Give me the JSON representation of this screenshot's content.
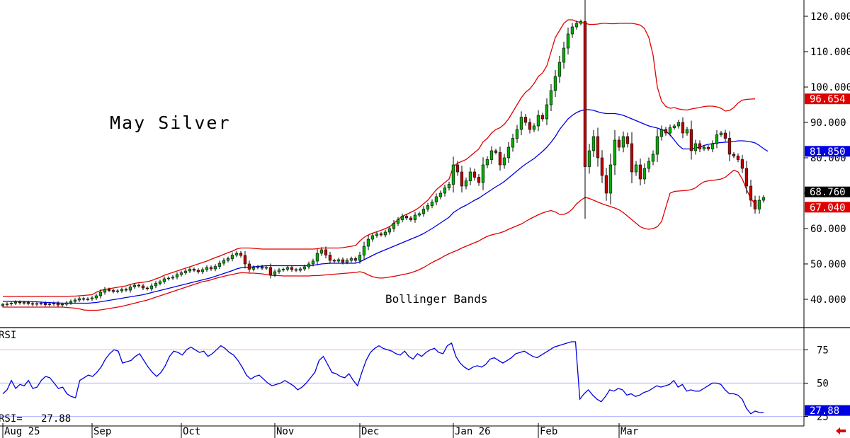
{
  "colors": {
    "candle_up": "#00b000",
    "candle_down": "#c00000",
    "bollinger_upper": "#e00000",
    "bollinger_lower": "#e00000",
    "bollinger_mid": "#0000e0",
    "rsi_line": "#0000e0",
    "rsi_guide_75": "#ffb0b0",
    "rsi_guide_50": "#b0b0ff",
    "rsi_guide_25": "#b0b0ff",
    "tag_upper_bg": "#e00000",
    "tag_mid_bg": "#0000e0",
    "tag_last_bg": "#000000",
    "tag_rsi_bg": "#0000e0",
    "arrow": "#e00000"
  },
  "icons": {
    "scroll_arrow": "red-left-arrow-icon"
  },
  "chart_data": [
    {
      "type": "candlestick",
      "title": "May Silver",
      "annotation": "Bollinger Bands",
      "ylim": [
        33,
        123
      ],
      "y_ticks": [
        "40.000",
        "50.000",
        "60.000",
        "70.000",
        "80.000",
        "90.000",
        "100.000",
        "110.000",
        "120.000"
      ],
      "y_tick_values": [
        40,
        50,
        60,
        70,
        80,
        90,
        100,
        110,
        120
      ],
      "value_tags": {
        "upper_band": "96.654",
        "middle_band": "81.850",
        "last_price": "68.760",
        "lower_band": "67.040"
      },
      "x_ticks": [
        "Aug 25",
        "Sep",
        "Oct",
        "Nov",
        "Dec",
        "Jan 26",
        "Feb",
        "Mar"
      ],
      "x_tick_index": [
        0,
        21,
        42,
        64,
        84,
        106,
        126,
        145
      ],
      "closes": [
        38.5,
        38.7,
        38.9,
        39.2,
        39.0,
        39.1,
        38.8,
        38.6,
        38.8,
        38.9,
        38.5,
        38.7,
        38.9,
        38.4,
        38.6,
        39.0,
        39.4,
        39.8,
        40.2,
        40.0,
        40.1,
        40.4,
        41.0,
        42.0,
        42.8,
        42.5,
        42.2,
        42.4,
        42.8,
        42.6,
        43.5,
        44.0,
        43.8,
        43.2,
        43.0,
        43.8,
        44.5,
        45.0,
        45.8,
        46.0,
        46.3,
        47.0,
        47.5,
        48.0,
        48.5,
        48.2,
        47.8,
        48.4,
        49.0,
        48.6,
        49.3,
        50.2,
        51.0,
        51.5,
        52.5,
        53.0,
        52.4,
        50.0,
        48.5,
        49.0,
        49.2,
        48.8,
        49.0,
        47.0,
        47.8,
        48.3,
        48.5,
        49.0,
        48.4,
        48.2,
        48.6,
        49.2,
        50.0,
        50.8,
        53.0,
        54.0,
        52.5,
        51.0,
        50.8,
        51.2,
        50.5,
        51.0,
        51.5,
        51.0,
        52.5,
        55.0,
        57.0,
        58.0,
        58.5,
        58.2,
        59.0,
        60.0,
        61.5,
        62.5,
        63.5,
        63.0,
        62.5,
        63.8,
        64.2,
        65.5,
        66.5,
        67.5,
        69.0,
        70.0,
        71.5,
        72.5,
        78.0,
        76.0,
        72.0,
        73.5,
        76.0,
        74.5,
        73.0,
        78.0,
        79.5,
        82.0,
        81.5,
        78.0,
        80.0,
        83.0,
        85.5,
        88.0,
        91.5,
        90.0,
        88.0,
        89.0,
        92.0,
        91.0,
        95.0,
        99.0,
        103.0,
        107.0,
        111.0,
        115.0,
        117.0,
        118.0,
        118.5,
        77.5,
        82.0,
        86.0,
        80.0,
        75.0,
        70.0,
        78.0,
        85.0,
        83.0,
        86.0,
        84.0,
        76.0,
        78.0,
        74.0,
        77.0,
        79.0,
        81.0,
        86.0,
        88.0,
        87.0,
        88.5,
        89.0,
        90.0,
        87.0,
        88.0,
        82.0,
        84.0,
        82.5,
        83.0,
        82.5,
        84.0,
        86.5,
        87.0,
        85.5,
        81.0,
        80.5,
        79.5,
        77.0,
        72.0,
        68.0,
        65.5,
        68.0,
        68.76
      ],
      "series": [
        {
          "name": "Upper",
          "values": [
            40.8,
            40.8,
            40.8,
            40.8,
            40.8,
            40.8,
            40.8,
            40.8,
            40.8,
            40.8,
            40.8,
            40.8,
            40.8,
            40.8,
            40.8,
            40.8,
            40.9,
            40.9,
            41.0,
            41.1,
            41.2,
            41.3,
            42.0,
            42.5,
            42.8,
            43.0,
            43.2,
            43.4,
            43.6,
            43.8,
            44.2,
            44.5,
            44.7,
            44.8,
            45.0,
            45.3,
            45.8,
            46.2,
            46.8,
            47.2,
            47.6,
            48.0,
            48.4,
            48.8,
            49.2,
            49.6,
            50.0,
            50.4,
            50.8,
            51.3,
            51.8,
            52.2,
            52.7,
            53.2,
            53.6,
            54.2,
            54.5,
            54.5,
            54.5,
            54.4,
            54.3,
            54.2,
            54.2,
            54.2,
            54.2,
            54.2,
            54.2,
            54.2,
            54.2,
            54.2,
            54.2,
            54.2,
            54.2,
            54.2,
            54.3,
            54.5,
            54.5,
            54.5,
            54.5,
            54.5,
            54.6,
            54.8,
            55.0,
            55.2,
            56.5,
            57.5,
            58.2,
            58.7,
            59.1,
            59.5,
            60.0,
            60.5,
            61.5,
            62.5,
            63.5,
            64.0,
            64.6,
            65.2,
            66.0,
            67.0,
            68.0,
            69.5,
            71.0,
            72.0,
            73.0,
            74.0,
            77.5,
            78.5,
            79.0,
            79.5,
            80.5,
            81.5,
            82.5,
            84.5,
            85.5,
            87.0,
            88.0,
            88.5,
            89.5,
            91.0,
            93.0,
            95.0,
            97.0,
            98.5,
            99.5,
            101.0,
            103.0,
            104.0,
            106.0,
            110.0,
            114.0,
            116.0,
            118.0,
            119.0,
            119.0,
            118.5,
            118.3,
            118.0,
            117.7,
            117.7,
            117.8,
            118.0,
            118.0,
            117.9,
            117.9,
            118.0,
            118.0,
            118.0,
            118.0,
            117.8,
            117.5,
            116.5,
            114.0,
            109.0,
            100.0,
            96.0,
            94.5,
            94.0,
            94.2,
            93.8,
            93.6,
            93.5,
            93.8,
            94.0,
            94.2,
            94.5,
            94.6,
            94.6,
            94.4,
            94.0,
            93.2,
            93.4,
            94.2,
            95.5,
            96.3,
            96.5,
            96.6,
            96.654
          ],
          "color": "#e00000"
        },
        {
          "name": "Middle",
          "values": [
            39.4,
            39.4,
            39.4,
            39.4,
            39.4,
            39.4,
            39.3,
            39.3,
            39.3,
            39.2,
            39.1,
            39.1,
            39.0,
            39.0,
            38.9,
            38.9,
            38.9,
            38.9,
            38.9,
            38.9,
            38.9,
            39.0,
            39.1,
            39.3,
            39.5,
            39.7,
            39.9,
            40.1,
            40.3,
            40.5,
            40.7,
            40.9,
            41.1,
            41.3,
            41.6,
            41.9,
            42.2,
            42.5,
            42.8,
            43.1,
            43.4,
            43.7,
            44.0,
            44.3,
            44.6,
            44.9,
            45.2,
            45.5,
            45.8,
            46.1,
            46.5,
            46.9,
            47.3,
            47.7,
            48.1,
            48.6,
            48.9,
            49.0,
            49.1,
            49.2,
            49.3,
            49.4,
            49.5,
            49.5,
            49.5,
            49.5,
            49.5,
            49.5,
            49.5,
            49.5,
            49.5,
            49.5,
            49.5,
            49.6,
            49.8,
            50.0,
            50.1,
            50.2,
            50.2,
            50.2,
            50.2,
            50.2,
            50.2,
            50.2,
            50.6,
            51.2,
            51.8,
            52.4,
            53.0,
            53.5,
            54.0,
            54.5,
            55.0,
            55.5,
            56.0,
            56.5,
            57.0,
            57.5,
            58.0,
            58.6,
            59.3,
            60.0,
            60.8,
            61.6,
            62.4,
            63.2,
            64.5,
            65.3,
            66.0,
            66.6,
            67.3,
            68.0,
            68.6,
            69.4,
            70.2,
            71.0,
            71.8,
            72.5,
            73.3,
            74.3,
            75.3,
            76.3,
            77.3,
            78.2,
            79.0,
            79.8,
            80.8,
            81.8,
            83.0,
            84.4,
            86.0,
            88.0,
            89.5,
            91.0,
            92.0,
            92.8,
            93.3,
            93.6,
            93.6,
            93.4,
            93.0,
            92.7,
            92.5,
            92.5,
            92.5,
            92.3,
            92.0,
            91.5,
            91.0,
            90.5,
            90.0,
            89.5,
            89.0,
            88.7,
            88.4,
            88.0,
            87.5,
            86.5,
            85.0,
            83.5,
            82.5,
            82.5,
            82.5,
            82.8,
            83.0,
            83.5,
            83.8,
            84.0,
            84.2,
            84.3,
            84.4,
            84.5,
            84.6,
            84.8,
            84.8,
            84.7,
            84.5,
            84.2,
            83.5,
            82.6,
            81.85
          ],
          "color": "#0000e0"
        },
        {
          "name": "Lower",
          "values": [
            37.8,
            37.8,
            37.8,
            37.8,
            37.8,
            37.8,
            37.8,
            37.8,
            37.8,
            37.8,
            37.8,
            37.8,
            37.8,
            37.8,
            37.8,
            37.7,
            37.6,
            37.5,
            37.3,
            37.0,
            36.9,
            36.9,
            36.9,
            37.0,
            37.2,
            37.4,
            37.6,
            37.8,
            38.0,
            38.3,
            38.6,
            38.9,
            39.2,
            39.5,
            39.8,
            40.2,
            40.6,
            41.0,
            41.4,
            41.8,
            42.2,
            42.6,
            43.0,
            43.4,
            43.8,
            44.2,
            44.6,
            45.0,
            45.2,
            45.5,
            45.9,
            46.2,
            46.5,
            46.8,
            47.0,
            47.3,
            47.5,
            47.5,
            47.4,
            47.4,
            47.3,
            47.2,
            47.0,
            46.8,
            46.7,
            46.7,
            46.6,
            46.6,
            46.6,
            46.6,
            46.6,
            46.6,
            46.6,
            46.7,
            46.7,
            46.8,
            46.9,
            47.0,
            47.1,
            47.2,
            47.3,
            47.4,
            47.5,
            47.6,
            47.8,
            47.5,
            46.9,
            46.4,
            46.1,
            46.0,
            46.1,
            46.3,
            46.5,
            46.7,
            47.0,
            47.2,
            47.5,
            47.9,
            48.4,
            49.0,
            49.7,
            50.4,
            51.0,
            51.6,
            52.3,
            52.9,
            53.4,
            53.9,
            54.5,
            55.0,
            55.5,
            56.0,
            56.5,
            57.2,
            57.8,
            58.2,
            58.5,
            58.8,
            59.2,
            59.8,
            60.3,
            60.8,
            61.3,
            62.0,
            62.7,
            63.3,
            63.9,
            64.4,
            64.8,
            65.1,
            64.7,
            64.0,
            64.0,
            64.5,
            65.5,
            67.0,
            68.0,
            68.8,
            68.5,
            68.0,
            67.5,
            67.0,
            66.6,
            66.2,
            65.8,
            65.3,
            64.5,
            63.5,
            62.5,
            61.5,
            60.5,
            60.0,
            59.8,
            60.0,
            60.5,
            62.0,
            66.0,
            70.0,
            70.5,
            70.6,
            70.7,
            70.8,
            71.0,
            71.5,
            72.5,
            73.2,
            73.5,
            73.6,
            73.8,
            74.0,
            74.5,
            75.5,
            76.5,
            76.0,
            74.0,
            71.0,
            68.5,
            67.04
          ],
          "color": "#e00000"
        }
      ]
    },
    {
      "type": "line",
      "title": "RSI",
      "readout_label": "RSI=",
      "readout_value": "27.88",
      "ylim": [
        20,
        90
      ],
      "y_ticks": [
        "25",
        "50",
        "75"
      ],
      "y_tick_values": [
        25,
        50,
        75
      ],
      "last_tag": "27.88",
      "series": [
        {
          "name": "RSI",
          "values": [
            42,
            45,
            52,
            46,
            49,
            48,
            52,
            46,
            47,
            52,
            55,
            54,
            50,
            46,
            47,
            42,
            40,
            39,
            52,
            54,
            56,
            55,
            58,
            62,
            68,
            72,
            75,
            74,
            65,
            66,
            67,
            70,
            72,
            67,
            62,
            58,
            55,
            58,
            63,
            70,
            74,
            73,
            71,
            75,
            77,
            75,
            73,
            74,
            70,
            72,
            75,
            78,
            76,
            73,
            71,
            67,
            62,
            56,
            53,
            55,
            56,
            53,
            50,
            48,
            49,
            50,
            52,
            50,
            48,
            45,
            47,
            50,
            54,
            58,
            67,
            70,
            64,
            58,
            57,
            55,
            54,
            57,
            52,
            48,
            58,
            67,
            73,
            76,
            78,
            76,
            75,
            74,
            72,
            71,
            74,
            70,
            68,
            72,
            70,
            73,
            75,
            76,
            73,
            72,
            78,
            80,
            70,
            65,
            62,
            60,
            62,
            63,
            62,
            64,
            68,
            69,
            67,
            65,
            67,
            69,
            72,
            73,
            74,
            72,
            70,
            69,
            71,
            73,
            75,
            77,
            78,
            79,
            80,
            81,
            81,
            38,
            42,
            45,
            41,
            38,
            36,
            40,
            45,
            44,
            46,
            45,
            41,
            42,
            40,
            41,
            43,
            44,
            46,
            48,
            47,
            48,
            49,
            52,
            47,
            49,
            44,
            45,
            44,
            44,
            46,
            48,
            50,
            50,
            49,
            45,
            42,
            42,
            41,
            38,
            31,
            27,
            29,
            28,
            27.88
          ],
          "color": "#0000e0"
        }
      ]
    }
  ]
}
